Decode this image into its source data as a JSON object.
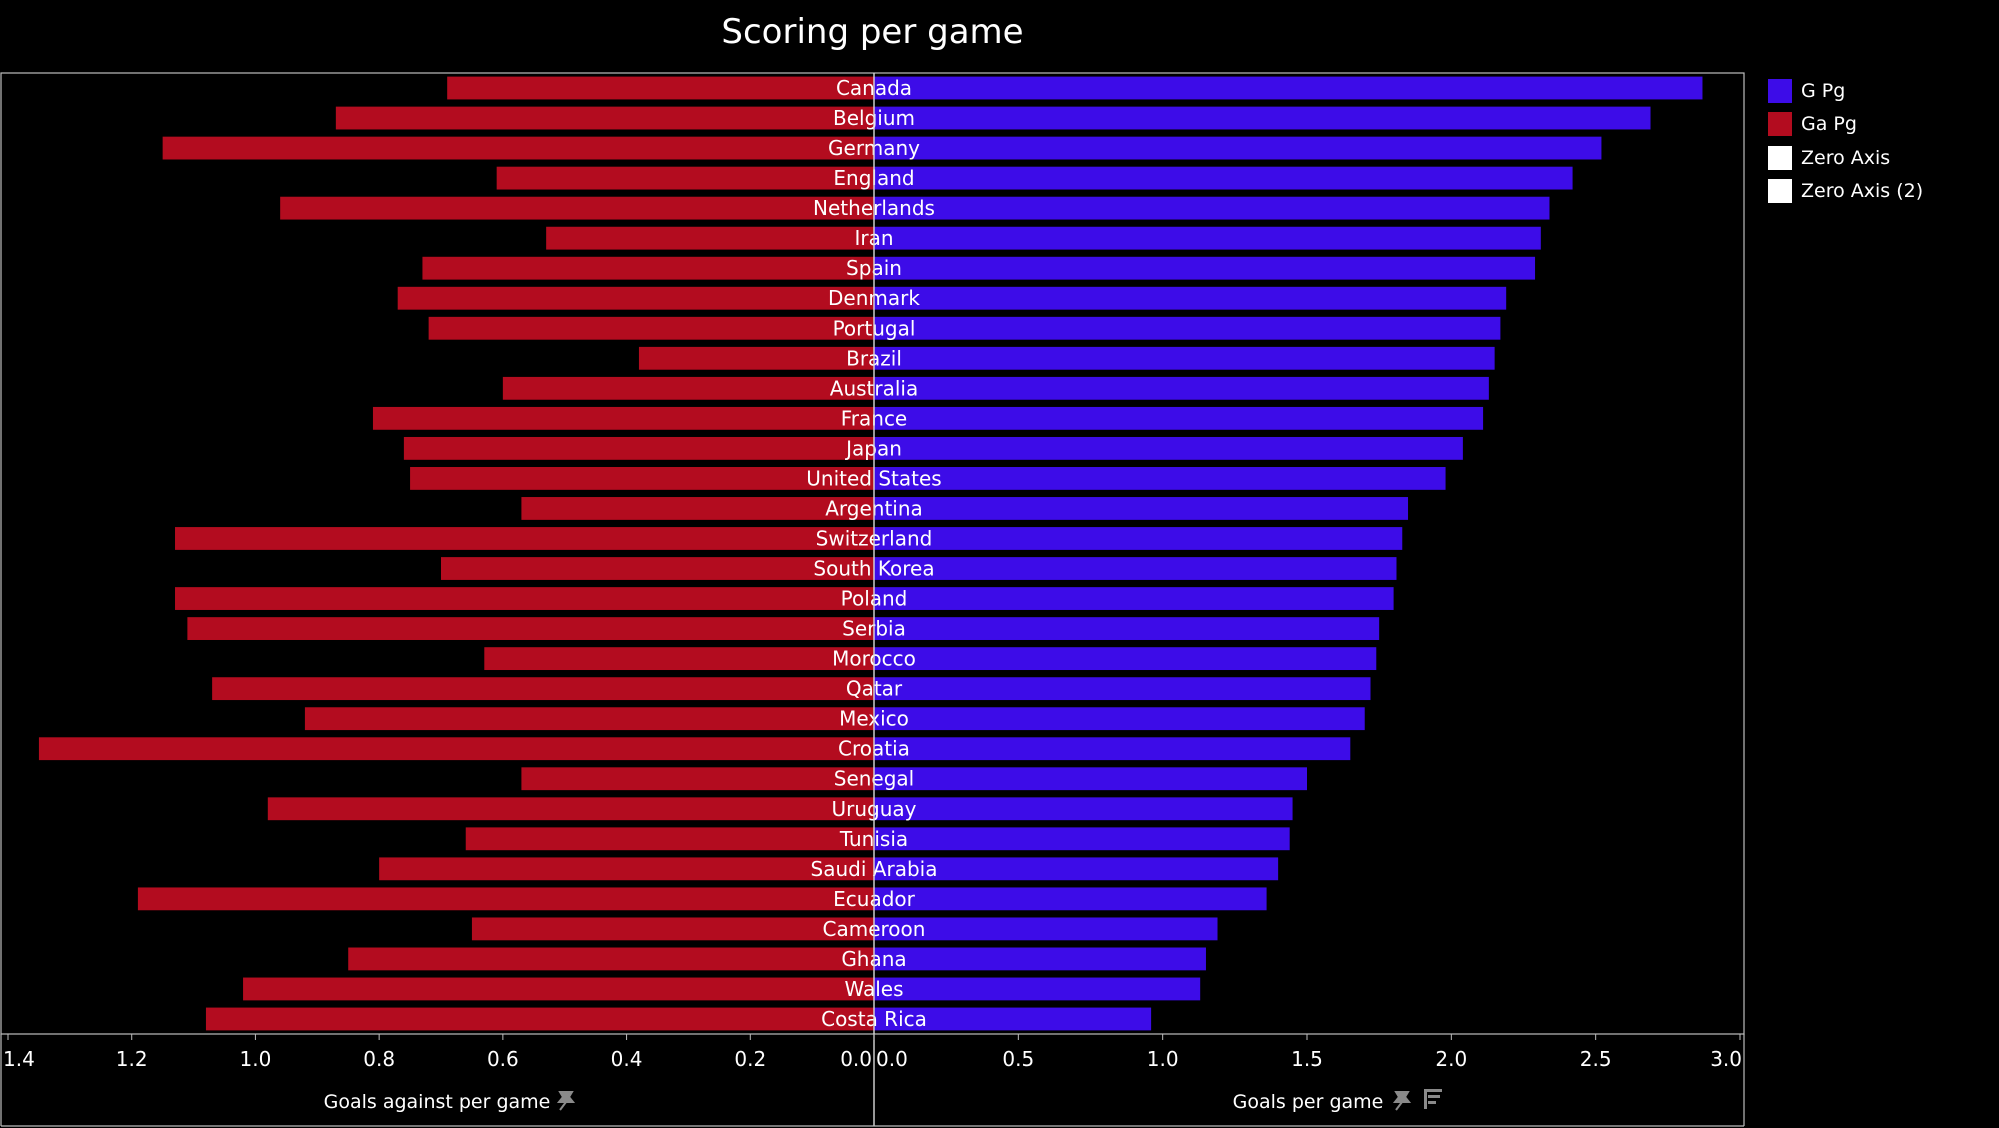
{
  "chart_data": {
    "type": "bar",
    "title": "Scoring per game",
    "categories": [
      "Canada",
      "Belgium",
      "Germany",
      "England",
      "Netherlands",
      "Iran",
      "Spain",
      "Denmark",
      "Portugal",
      "Brazil",
      "Australia",
      "France",
      "Japan",
      "United States",
      "Argentina",
      "Switzerland",
      "South Korea",
      "Poland",
      "Serbia",
      "Morocco",
      "Qatar",
      "Mexico",
      "Croatia",
      "Senegal",
      "Uruguay",
      "Tunisia",
      "Saudi Arabia",
      "Ecuador",
      "Cameroon",
      "Ghana",
      "Wales",
      "Costa Rica"
    ],
    "series": [
      {
        "name": "G Pg",
        "color": "#3d0ce8",
        "values": [
          2.87,
          2.69,
          2.52,
          2.42,
          2.34,
          2.31,
          2.29,
          2.19,
          2.17,
          2.15,
          2.13,
          2.11,
          2.04,
          1.98,
          1.85,
          1.83,
          1.81,
          1.8,
          1.75,
          1.74,
          1.72,
          1.7,
          1.65,
          1.5,
          1.45,
          1.44,
          1.4,
          1.36,
          1.19,
          1.15,
          1.13,
          0.96
        ]
      },
      {
        "name": "Ga Pg",
        "color": "#b30c1f",
        "values": [
          0.69,
          0.87,
          1.15,
          0.61,
          0.96,
          0.53,
          0.73,
          0.77,
          0.72,
          0.38,
          0.6,
          0.81,
          0.76,
          0.75,
          0.57,
          1.13,
          0.7,
          1.13,
          1.11,
          0.63,
          1.07,
          0.92,
          1.35,
          0.57,
          0.98,
          0.66,
          0.8,
          1.19,
          0.65,
          0.85,
          1.02,
          1.08
        ]
      }
    ],
    "left_axis": {
      "label": "Goals against per game",
      "ticks": [
        "1.4",
        "1.2",
        "1.0",
        "0.8",
        "0.6",
        "0.4",
        "0.2",
        "0.0"
      ],
      "range": [
        1.4,
        0
      ]
    },
    "right_axis": {
      "label": "Goals per game",
      "ticks": [
        "0.0",
        "0.5",
        "1.0",
        "1.5",
        "2.0",
        "2.5",
        "3.0"
      ],
      "range": [
        0,
        3.0
      ]
    },
    "legend": {
      "placement": "right",
      "entries": [
        {
          "label": "G Pg",
          "color": "#3d0ce8"
        },
        {
          "label": "Ga Pg",
          "color": "#b30c1f"
        },
        {
          "label": "Zero Axis",
          "color": "#ffffff"
        },
        {
          "label": "Zero Axis (2)",
          "color": "#ffffff"
        }
      ]
    }
  }
}
